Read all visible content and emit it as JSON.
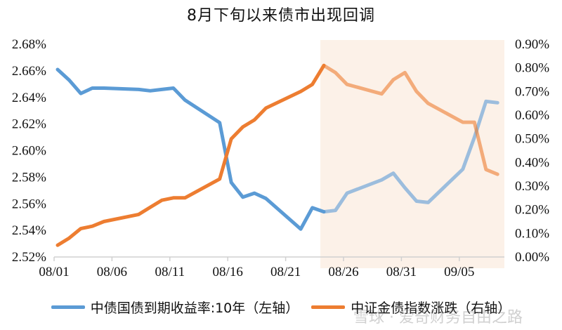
{
  "title": "8月下旬以来债市出现回调",
  "watermark": "雪球 · 爱奇财务自由之路",
  "legend": [
    {
      "label": "中债国债到期收益率:10年（左轴）",
      "color": "#5B9BD5"
    },
    {
      "label": "中证金债指数涨跌（右轴）",
      "color": "#ED7D31"
    }
  ],
  "chart_data": {
    "type": "line",
    "title": "8月下旬以来债市出现回调",
    "xlabel": "",
    "ylabel_left": "",
    "ylabel_right": "",
    "x_tick_labels": [
      "08/01",
      "08/06",
      "08/11",
      "08/16",
      "08/21",
      "08/26",
      "08/31",
      "09/05"
    ],
    "left_axis": {
      "min": 2.52,
      "max": 2.68,
      "step": 0.02,
      "ticks": [
        "2.52%",
        "2.54%",
        "2.56%",
        "2.58%",
        "2.60%",
        "2.62%",
        "2.64%",
        "2.66%",
        "2.68%"
      ]
    },
    "right_axis": {
      "min": 0.0,
      "max": 0.9,
      "step": 0.1,
      "ticks": [
        "0.00%",
        "0.10%",
        "0.20%",
        "0.30%",
        "0.40%",
        "0.50%",
        "0.60%",
        "0.70%",
        "0.80%",
        "0.90%"
      ]
    },
    "shaded_region": {
      "from": "08/24",
      "to": "09/08",
      "color": "#FCF1E8"
    },
    "grid": false,
    "legend_position": "bottom",
    "x": [
      "08/01",
      "08/02",
      "08/03",
      "08/04",
      "08/05",
      "08/08",
      "08/09",
      "08/10",
      "08/11",
      "08/12",
      "08/15",
      "08/16",
      "08/17",
      "08/18",
      "08/19",
      "08/22",
      "08/23",
      "08/24",
      "08/25",
      "08/26",
      "08/29",
      "08/30",
      "08/31",
      "09/01",
      "09/02",
      "09/05",
      "09/06",
      "09/07",
      "09/08"
    ],
    "series": [
      {
        "name": "中债国债到期收益率:10年（左轴）",
        "axis": "left",
        "color": "#5B9BD5",
        "values": [
          2.661,
          2.653,
          2.643,
          2.647,
          2.647,
          2.646,
          2.645,
          2.646,
          2.647,
          2.638,
          2.621,
          2.576,
          2.565,
          2.568,
          2.564,
          2.541,
          2.557,
          2.554,
          2.555,
          2.568,
          2.578,
          2.583,
          2.572,
          2.562,
          2.561,
          2.586,
          2.61,
          2.637,
          2.636
        ]
      },
      {
        "name": "中证金债指数涨跌（右轴）",
        "axis": "right",
        "color": "#ED7D31",
        "values": [
          0.05,
          0.08,
          0.12,
          0.13,
          0.15,
          0.18,
          0.21,
          0.24,
          0.25,
          0.25,
          0.33,
          0.5,
          0.55,
          0.58,
          0.63,
          0.7,
          0.73,
          0.81,
          0.78,
          0.73,
          0.69,
          0.75,
          0.78,
          0.7,
          0.65,
          0.57,
          0.57,
          0.37,
          0.35
        ]
      }
    ]
  }
}
